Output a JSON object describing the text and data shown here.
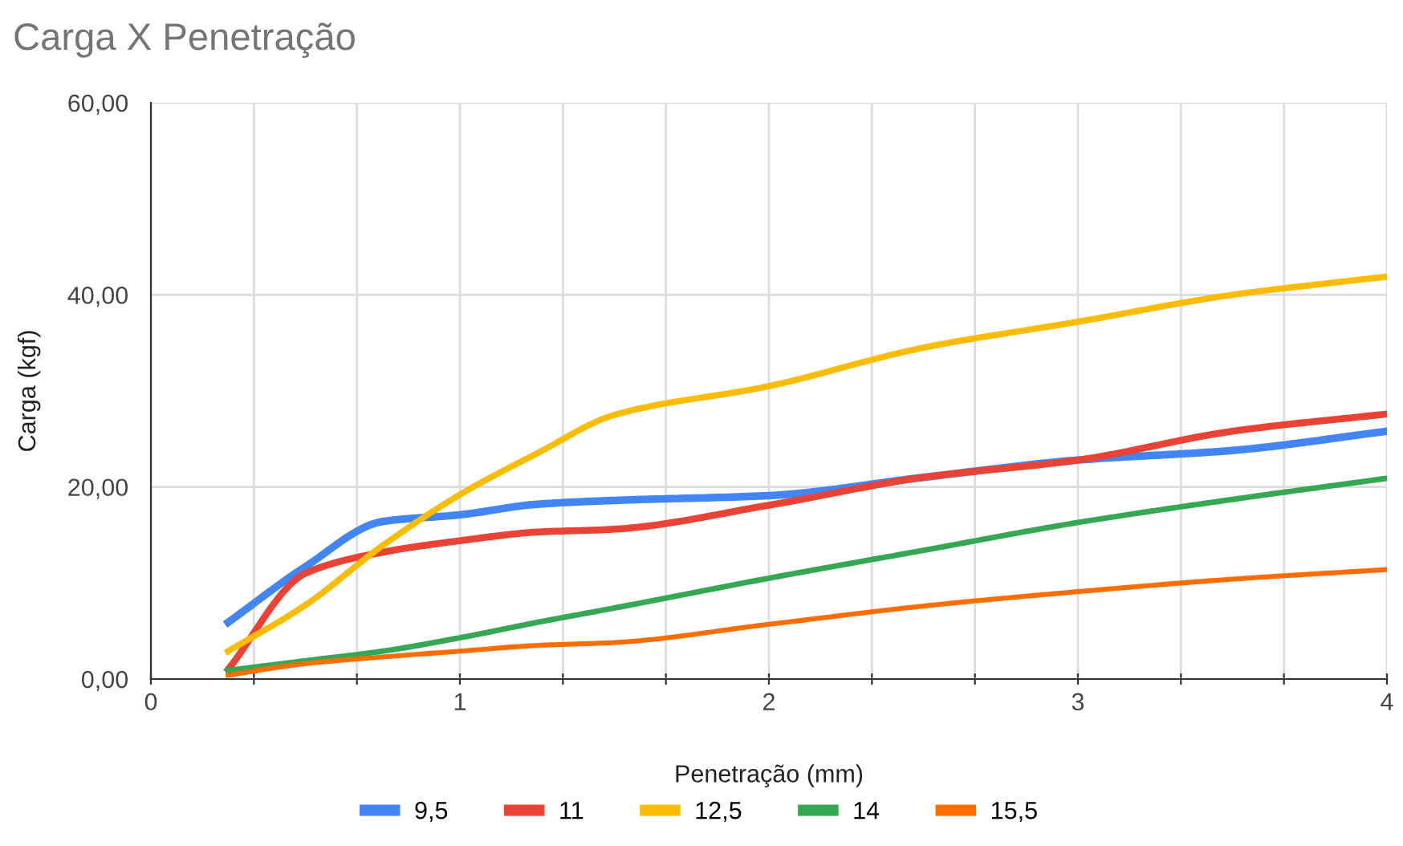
{
  "chart_data": {
    "type": "line",
    "title": "Carga X Penetração",
    "xlabel": "Penetração (mm)",
    "ylabel": "Carga (kgf)",
    "x": [
      0.25,
      0.5,
      0.75,
      1,
      1.25,
      1.5,
      2,
      2.5,
      3,
      3.5,
      4
    ],
    "series": [
      {
        "name": "9,5",
        "color": "#4285f4",
        "values": [
          5.9,
          11.7,
          16.4,
          17.1,
          18.2,
          18.6,
          19.1,
          21.0,
          22.8,
          23.8,
          25.8
        ]
      },
      {
        "name": "11",
        "color": "#ea4335",
        "values": [
          1.0,
          11.0,
          13.2,
          14.4,
          15.3,
          15.6,
          18.1,
          21.0,
          22.8,
          25.8,
          27.6
        ]
      },
      {
        "name": "12,5",
        "color": "#fbbc04",
        "values": [
          2.9,
          7.7,
          13.9,
          19.2,
          23.5,
          27.5,
          30.5,
          34.5,
          37.2,
          40.0,
          41.9
        ]
      },
      {
        "name": "14",
        "color": "#34a853",
        "values": [
          0.9,
          1.9,
          2.9,
          4.3,
          5.9,
          7.4,
          10.5,
          13.4,
          16.3,
          18.7,
          20.9
        ]
      },
      {
        "name": "15,5",
        "color": "#ff6d01",
        "values": [
          0.4,
          1.6,
          2.3,
          2.9,
          3.5,
          3.8,
          5.7,
          7.6,
          9.1,
          10.4,
          11.4
        ]
      }
    ],
    "xlim": [
      0,
      4
    ],
    "ylim": [
      0,
      60
    ],
    "xticks": [
      0,
      {
        "value": 0.3333,
        "label": null
      },
      {
        "value": 0.6667,
        "label": null
      },
      1,
      {
        "value": 1.3333,
        "label": null
      },
      {
        "value": 1.6667,
        "label": null
      },
      2,
      {
        "value": 2.3333,
        "label": null
      },
      {
        "value": 2.6667,
        "label": null
      },
      3,
      {
        "value": 3.3333,
        "label": null
      },
      {
        "value": 3.6667,
        "label": null
      },
      4
    ],
    "yticks": [
      {
        "value": 0,
        "label": "0,00"
      },
      {
        "value": 20,
        "label": "20,00"
      },
      {
        "value": 40,
        "label": "40,00"
      },
      {
        "value": 60,
        "label": "60,00"
      }
    ],
    "grid": true,
    "legend": "bottom",
    "marker": "none",
    "line_style": "solid"
  }
}
